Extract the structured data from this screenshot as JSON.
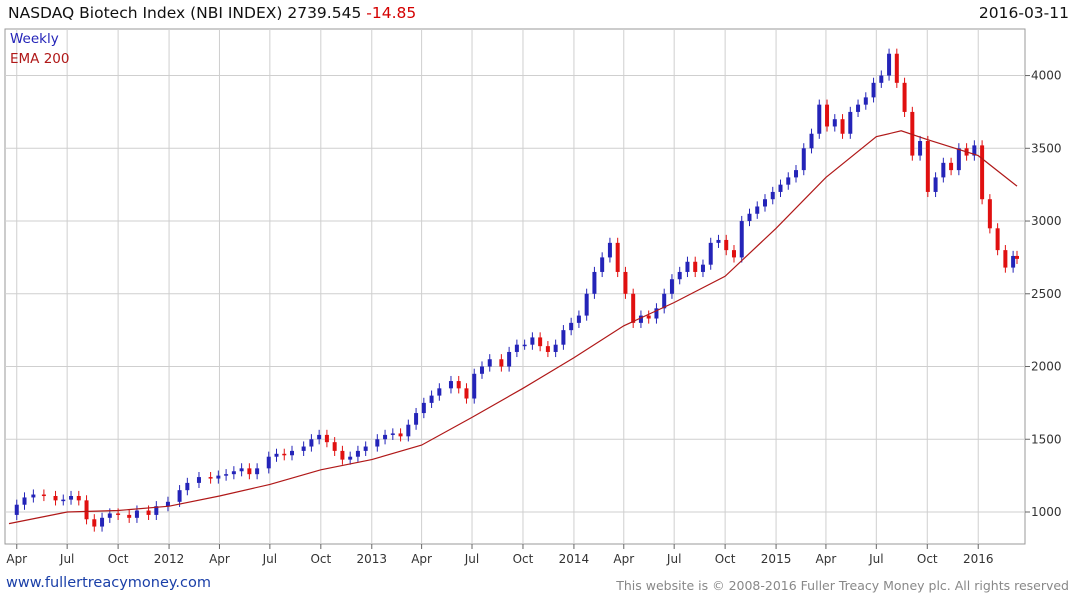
{
  "header": {
    "title": "NASDAQ Biotech Index (NBI INDEX)",
    "price": "2739.545",
    "change": "-14.85",
    "date": "2016-03-11"
  },
  "legend": {
    "series1": "Weekly",
    "series2": "EMA 200"
  },
  "footer": {
    "site": "www.fullertreacymoney.com",
    "copyright": "This website is © 2008-2016 Fuller Treacy Money plc. All rights reserved"
  },
  "colors": {
    "up": "#2424b8",
    "down": "#e01010",
    "ema": "#b01818",
    "grid": "#cfcfcf",
    "tick": "#333333"
  },
  "chart_data": {
    "type": "line",
    "title": "NASDAQ Biotech Index (NBI INDEX) 2739.545 -14.85",
    "x_range": [
      "2011-03-18",
      "2016-03-11"
    ],
    "ylim": [
      780,
      4320
    ],
    "y_ticks": [
      1000,
      1500,
      2000,
      2500,
      3000,
      3500,
      4000
    ],
    "grid": true,
    "legend_position": "top-left",
    "x_ticks": [
      {
        "date": "2011-04-01",
        "label": "Apr"
      },
      {
        "date": "2011-07-01",
        "label": "Jul"
      },
      {
        "date": "2011-10-01",
        "label": "Oct"
      },
      {
        "date": "2012-01-01",
        "label": "2012"
      },
      {
        "date": "2012-04-01",
        "label": "Apr"
      },
      {
        "date": "2012-07-01",
        "label": "Jul"
      },
      {
        "date": "2012-10-01",
        "label": "Oct"
      },
      {
        "date": "2013-01-01",
        "label": "2013"
      },
      {
        "date": "2013-04-01",
        "label": "Apr"
      },
      {
        "date": "2013-07-01",
        "label": "Jul"
      },
      {
        "date": "2013-10-01",
        "label": "Oct"
      },
      {
        "date": "2014-01-01",
        "label": "2014"
      },
      {
        "date": "2014-04-01",
        "label": "Apr"
      },
      {
        "date": "2014-07-01",
        "label": "Jul"
      },
      {
        "date": "2014-10-01",
        "label": "Oct"
      },
      {
        "date": "2015-01-01",
        "label": "2015"
      },
      {
        "date": "2015-04-01",
        "label": "Apr"
      },
      {
        "date": "2015-07-01",
        "label": "Jul"
      },
      {
        "date": "2015-10-01",
        "label": "Oct"
      },
      {
        "date": "2016-01-01",
        "label": "2016"
      }
    ],
    "weekly_close": [
      [
        "2011-03-18",
        980
      ],
      [
        "2011-04-01",
        1050
      ],
      [
        "2011-04-15",
        1100
      ],
      [
        "2011-05-01",
        1120
      ],
      [
        "2011-05-20",
        1110
      ],
      [
        "2011-06-10",
        1080
      ],
      [
        "2011-06-24",
        1085
      ],
      [
        "2011-07-08",
        1110
      ],
      [
        "2011-07-22",
        1080
      ],
      [
        "2011-08-05",
        950
      ],
      [
        "2011-08-19",
        900
      ],
      [
        "2011-09-02",
        960
      ],
      [
        "2011-09-16",
        990
      ],
      [
        "2011-10-01",
        980
      ],
      [
        "2011-10-21",
        960
      ],
      [
        "2011-11-04",
        1010
      ],
      [
        "2011-11-25",
        980
      ],
      [
        "2011-12-09",
        1040
      ],
      [
        "2011-12-30",
        1070
      ],
      [
        "2012-01-20",
        1150
      ],
      [
        "2012-02-03",
        1200
      ],
      [
        "2012-02-24",
        1240
      ],
      [
        "2012-03-16",
        1230
      ],
      [
        "2012-03-30",
        1250
      ],
      [
        "2012-04-13",
        1260
      ],
      [
        "2012-04-27",
        1280
      ],
      [
        "2012-05-11",
        1300
      ],
      [
        "2012-05-25",
        1260
      ],
      [
        "2012-06-08",
        1300
      ],
      [
        "2012-06-29",
        1380
      ],
      [
        "2012-07-13",
        1400
      ],
      [
        "2012-07-27",
        1390
      ],
      [
        "2012-08-10",
        1420
      ],
      [
        "2012-08-31",
        1450
      ],
      [
        "2012-09-14",
        1500
      ],
      [
        "2012-09-28",
        1530
      ],
      [
        "2012-10-12",
        1480
      ],
      [
        "2012-10-26",
        1420
      ],
      [
        "2012-11-09",
        1360
      ],
      [
        "2012-11-23",
        1380
      ],
      [
        "2012-12-07",
        1420
      ],
      [
        "2012-12-21",
        1450
      ],
      [
        "2013-01-11",
        1500
      ],
      [
        "2013-01-25",
        1530
      ],
      [
        "2013-02-08",
        1540
      ],
      [
        "2013-02-22",
        1520
      ],
      [
        "2013-03-08",
        1600
      ],
      [
        "2013-03-22",
        1680
      ],
      [
        "2013-04-05",
        1750
      ],
      [
        "2013-04-19",
        1800
      ],
      [
        "2013-05-03",
        1850
      ],
      [
        "2013-05-24",
        1900
      ],
      [
        "2013-06-07",
        1850
      ],
      [
        "2013-06-21",
        1780
      ],
      [
        "2013-07-05",
        1950
      ],
      [
        "2013-07-19",
        2000
      ],
      [
        "2013-08-02",
        2050
      ],
      [
        "2013-08-23",
        2000
      ],
      [
        "2013-09-06",
        2100
      ],
      [
        "2013-09-20",
        2150
      ],
      [
        "2013-10-04",
        2150
      ],
      [
        "2013-10-18",
        2200
      ],
      [
        "2013-11-01",
        2140
      ],
      [
        "2013-11-15",
        2100
      ],
      [
        "2013-11-29",
        2150
      ],
      [
        "2013-12-13",
        2250
      ],
      [
        "2013-12-27",
        2300
      ],
      [
        "2014-01-10",
        2350
      ],
      [
        "2014-01-24",
        2500
      ],
      [
        "2014-02-07",
        2650
      ],
      [
        "2014-02-21",
        2750
      ],
      [
        "2014-03-07",
        2850
      ],
      [
        "2014-03-21",
        2650
      ],
      [
        "2014-04-04",
        2500
      ],
      [
        "2014-04-18",
        2300
      ],
      [
        "2014-05-02",
        2350
      ],
      [
        "2014-05-16",
        2330
      ],
      [
        "2014-05-30",
        2400
      ],
      [
        "2014-06-13",
        2500
      ],
      [
        "2014-06-27",
        2600
      ],
      [
        "2014-07-11",
        2650
      ],
      [
        "2014-07-25",
        2720
      ],
      [
        "2014-08-08",
        2650
      ],
      [
        "2014-08-22",
        2700
      ],
      [
        "2014-09-05",
        2850
      ],
      [
        "2014-09-19",
        2870
      ],
      [
        "2014-10-03",
        2800
      ],
      [
        "2014-10-17",
        2750
      ],
      [
        "2014-10-31",
        3000
      ],
      [
        "2014-11-14",
        3050
      ],
      [
        "2014-11-28",
        3100
      ],
      [
        "2014-12-12",
        3150
      ],
      [
        "2014-12-26",
        3200
      ],
      [
        "2015-01-09",
        3250
      ],
      [
        "2015-01-23",
        3300
      ],
      [
        "2015-02-06",
        3350
      ],
      [
        "2015-02-20",
        3500
      ],
      [
        "2015-03-06",
        3600
      ],
      [
        "2015-03-20",
        3800
      ],
      [
        "2015-04-03",
        3650
      ],
      [
        "2015-04-17",
        3700
      ],
      [
        "2015-05-01",
        3600
      ],
      [
        "2015-05-15",
        3750
      ],
      [
        "2015-05-29",
        3800
      ],
      [
        "2015-06-12",
        3850
      ],
      [
        "2015-06-26",
        3950
      ],
      [
        "2015-07-10",
        4000
      ],
      [
        "2015-07-24",
        4150
      ],
      [
        "2015-08-07",
        3950
      ],
      [
        "2015-08-21",
        3750
      ],
      [
        "2015-09-04",
        3450
      ],
      [
        "2015-09-18",
        3550
      ],
      [
        "2015-10-02",
        3200
      ],
      [
        "2015-10-16",
        3300
      ],
      [
        "2015-10-30",
        3400
      ],
      [
        "2015-11-13",
        3350
      ],
      [
        "2015-11-27",
        3500
      ],
      [
        "2015-12-11",
        3450
      ],
      [
        "2015-12-25",
        3520
      ],
      [
        "2016-01-08",
        3150
      ],
      [
        "2016-01-22",
        2950
      ],
      [
        "2016-02-05",
        2800
      ],
      [
        "2016-02-19",
        2680
      ],
      [
        "2016-03-04",
        2760
      ],
      [
        "2016-03-11",
        2740
      ]
    ],
    "ema200": [
      [
        "2011-03-18",
        920
      ],
      [
        "2011-07-01",
        1000
      ],
      [
        "2011-10-01",
        1010
      ],
      [
        "2012-01-01",
        1040
      ],
      [
        "2012-04-01",
        1110
      ],
      [
        "2012-07-01",
        1190
      ],
      [
        "2012-10-01",
        1290
      ],
      [
        "2013-01-01",
        1360
      ],
      [
        "2013-04-01",
        1460
      ],
      [
        "2013-07-01",
        1650
      ],
      [
        "2013-10-01",
        1850
      ],
      [
        "2014-01-01",
        2060
      ],
      [
        "2014-04-01",
        2280
      ],
      [
        "2014-07-01",
        2440
      ],
      [
        "2014-10-01",
        2620
      ],
      [
        "2015-01-01",
        2950
      ],
      [
        "2015-04-01",
        3300
      ],
      [
        "2015-07-01",
        3580
      ],
      [
        "2015-08-15",
        3620
      ],
      [
        "2015-10-01",
        3560
      ],
      [
        "2016-01-01",
        3450
      ],
      [
        "2016-03-11",
        3240
      ]
    ]
  }
}
